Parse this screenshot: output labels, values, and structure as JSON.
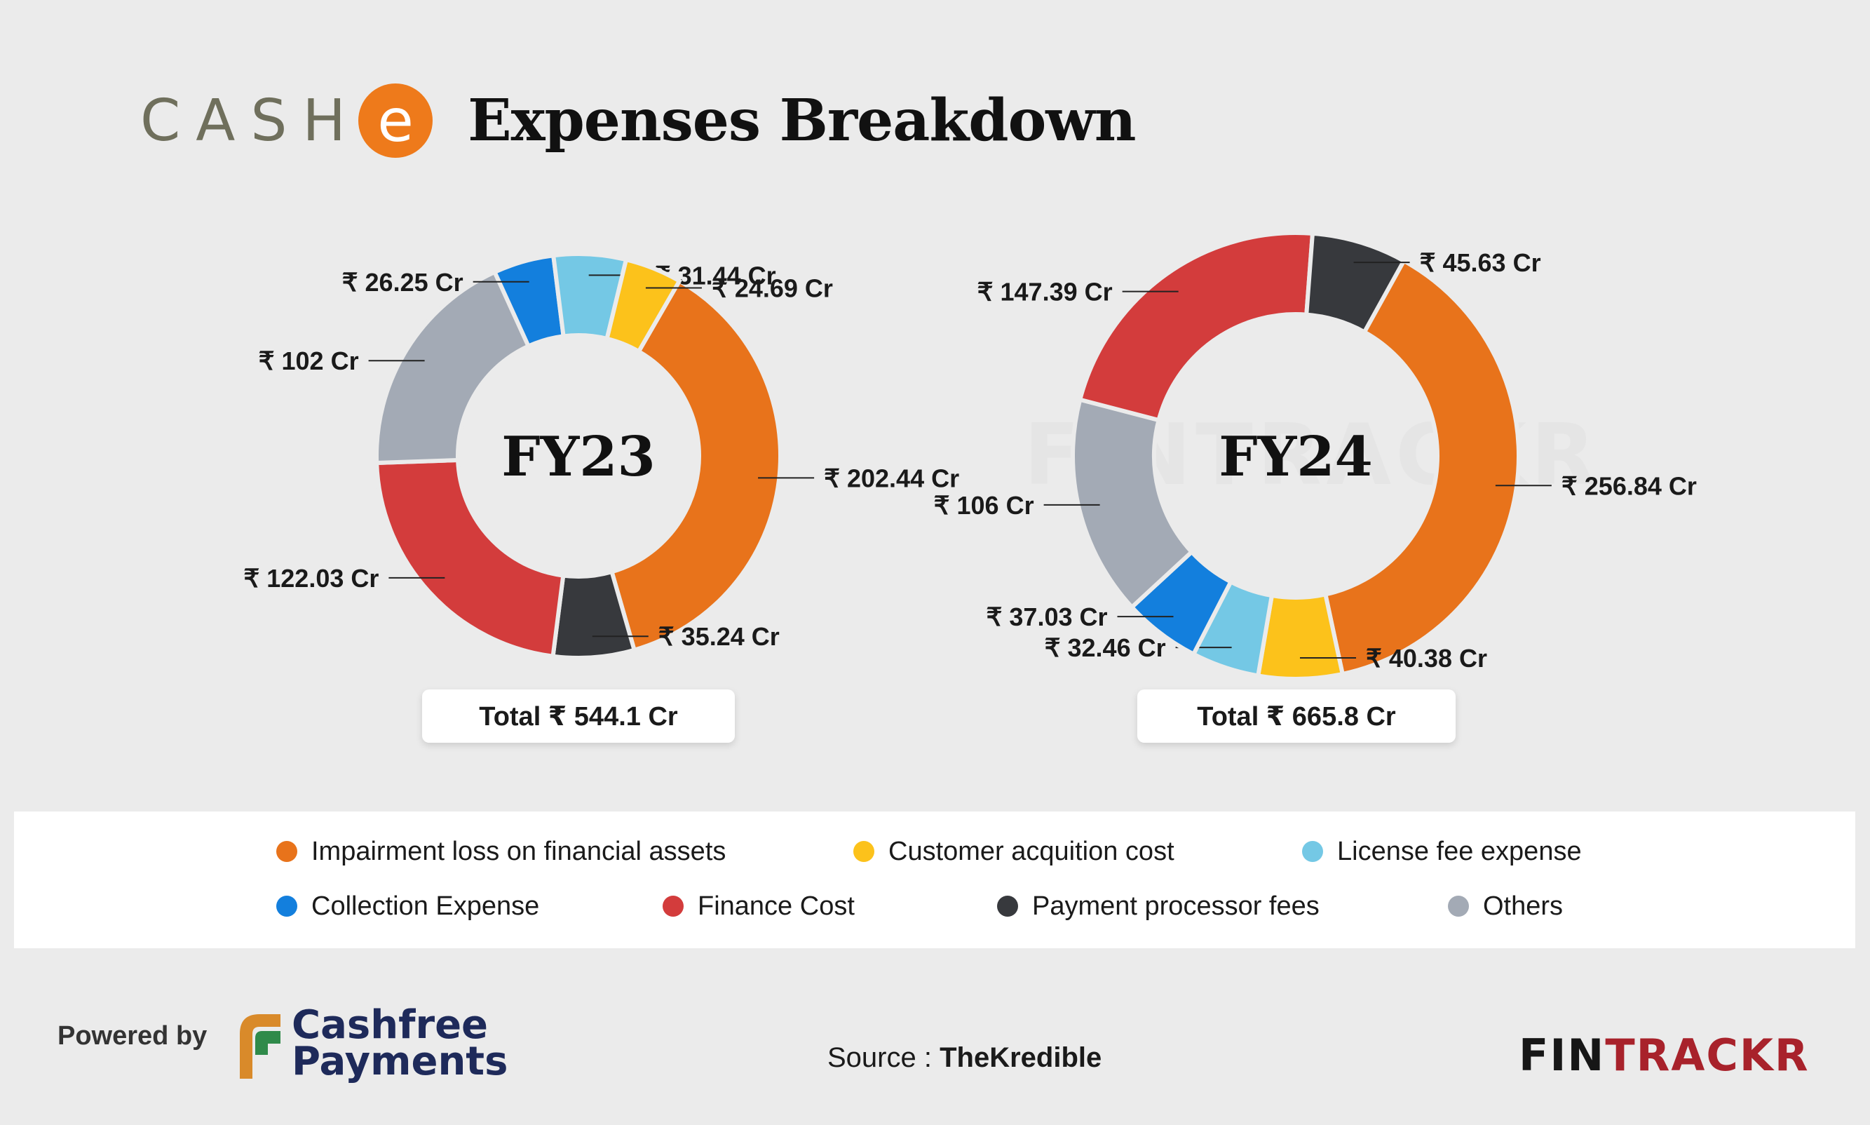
{
  "header": {
    "logo_text": "CASH",
    "logo_letter": "e",
    "title": "Expenses Breakdown"
  },
  "colors": {
    "impairment": "#e8731b",
    "customer_acquisition": "#fcc21b",
    "license": "#74c8e5",
    "collection": "#137fdd",
    "finance": "#d33c3c",
    "payment_processor": "#37393d",
    "others": "#a3aab5"
  },
  "legend": [
    {
      "key": "impairment",
      "label": "Impairment loss on financial assets"
    },
    {
      "key": "customer_acquisition",
      "label": "Customer acquition cost"
    },
    {
      "key": "license",
      "label": "License fee expense"
    },
    {
      "key": "collection",
      "label": "Collection Expense"
    },
    {
      "key": "finance",
      "label": "Finance Cost"
    },
    {
      "key": "payment_processor",
      "label": "Payment processor fees"
    },
    {
      "key": "others",
      "label": "Others"
    }
  ],
  "chart_data": [
    {
      "type": "donut",
      "center_label": "FY23",
      "total_label": "Total ₹ 544.1 Cr",
      "slices": [
        {
          "key": "impairment",
          "value": 202.44,
          "label": "₹ 202.44 Cr"
        },
        {
          "key": "payment_processor",
          "value": 35.24,
          "label": "₹ 35.24 Cr"
        },
        {
          "key": "finance",
          "value": 122.03,
          "label": "₹ 122.03 Cr"
        },
        {
          "key": "others",
          "value": 102,
          "label": "₹ 102 Cr"
        },
        {
          "key": "collection",
          "value": 26.25,
          "label": "₹ 26.25 Cr"
        },
        {
          "key": "license",
          "value": 31.44,
          "label": "₹ 31.44 Cr"
        },
        {
          "key": "customer_acquisition",
          "value": 24.69,
          "label": "₹ 24.69 Cr"
        }
      ]
    },
    {
      "type": "donut",
      "center_label": "FY24",
      "total_label": "Total ₹ 665.8 Cr",
      "slices": [
        {
          "key": "impairment",
          "value": 256.84,
          "label": "₹ 256.84 Cr"
        },
        {
          "key": "customer_acquisition",
          "value": 40.38,
          "label": "₹ 40.38 Cr"
        },
        {
          "key": "license",
          "value": 32.46,
          "label": "₹ 32.46 Cr"
        },
        {
          "key": "collection",
          "value": 37.03,
          "label": "₹ 37.03 Cr"
        },
        {
          "key": "others",
          "value": 106,
          "label": "₹ 106 Cr"
        },
        {
          "key": "finance",
          "value": 147.39,
          "label": "₹ 147.39 Cr"
        },
        {
          "key": "payment_processor",
          "value": 45.63,
          "label": "₹ 45.63 Cr"
        }
      ]
    }
  ],
  "footer": {
    "powered_by": "Powered by",
    "cashfree_line1": "Cashfree",
    "cashfree_line2": "Payments",
    "source_prefix": "Source : ",
    "source_name": "TheKredible",
    "brand_dark": "FIN",
    "brand_red": "TRACKR"
  }
}
